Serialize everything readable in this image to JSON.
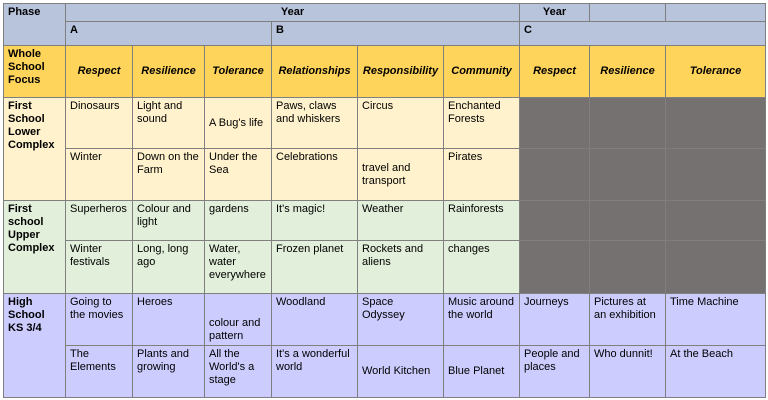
{
  "header": {
    "phase_label": "Phase",
    "year_label": "Year",
    "year_label_2": "Year",
    "group_a": "A",
    "group_b": "B",
    "group_c": "C"
  },
  "focus": {
    "label": "Whole School Focus",
    "values": [
      "Respect",
      "Resilience",
      "Tolerance",
      "Relationships",
      "Responsibility",
      "Community",
      "Respect",
      "Resilience",
      "Tolerance"
    ]
  },
  "phases": {
    "lower": "First School Lower Complex",
    "upper": "First school Upper Complex",
    "high": "High School KS 3/4"
  },
  "rows": {
    "lower1": [
      "Dinosaurs",
      "Light and sound",
      "A Bug's life",
      "Paws, claws and whiskers",
      "Circus",
      "Enchanted Forests"
    ],
    "lower2": [
      "Winter",
      "Down on the Farm",
      "Under the Sea",
      "Celebrations",
      "travel and transport",
      "Pirates"
    ],
    "upper1": [
      "Superheros",
      "Colour and light",
      "gardens",
      "It's magic!",
      "Weather",
      "Rainforests"
    ],
    "upper2": [
      "Winter festivals",
      "Long, long ago",
      "Water, water everywhere",
      "Frozen planet",
      "Rockets and aliens",
      "changes"
    ],
    "high1": [
      "Going to the movies",
      "Heroes",
      "colour and pattern",
      "Woodland",
      "Space Odyssey",
      "Music around the world",
      "Journeys",
      "Pictures at an exhibition",
      "Time Machine"
    ],
    "high2": [
      "The Elements",
      "Plants and growing",
      "All the World's a stage",
      "It's a wonderful world",
      "World Kitchen",
      "Blue Planet",
      "People and places",
      "Who dunnit!",
      "At the Beach"
    ]
  }
}
